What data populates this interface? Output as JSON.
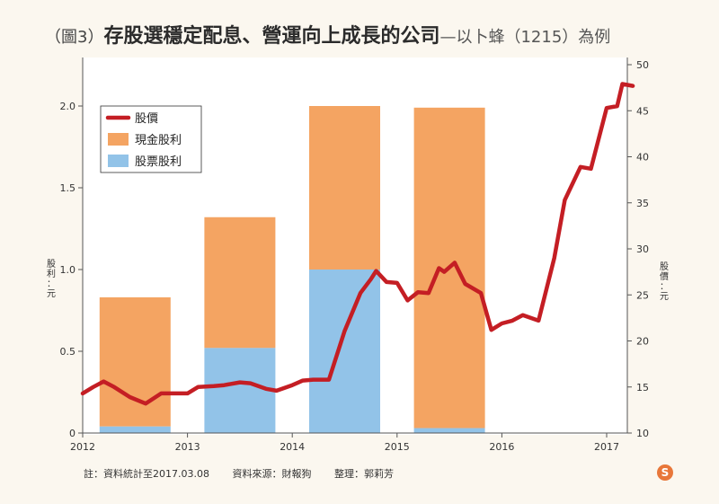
{
  "header": {
    "figure_label": "（圖3）",
    "title": "存股選穩定配息、營運向上成長的公司",
    "subtitle": "—以卜蜂（1215）為例"
  },
  "footnotes": {
    "note": "註：資料統計至2017.03.08",
    "source": "資料來源：財報狗",
    "editor": "整理：郭莉芳"
  },
  "logo_text": "S",
  "chart_data": {
    "type": "bar+line",
    "x_ticks": [
      "2012",
      "2013",
      "2014",
      "2015",
      "2016",
      "2017"
    ],
    "y_left": {
      "label": "股利：元",
      "ticks": [
        "0",
        "0.5",
        "1.0",
        "1.5",
        "2.0"
      ],
      "range": [
        0,
        2.2
      ]
    },
    "y_right": {
      "label": "股價：元",
      "ticks": [
        "10",
        "15",
        "20",
        "25",
        "30",
        "35",
        "40",
        "45",
        "50"
      ],
      "range": [
        10,
        50
      ]
    },
    "legend": {
      "placement": "top-left",
      "entries": [
        "股價",
        "現金股利",
        "股票股利"
      ]
    },
    "bars": [
      {
        "year": 2012,
        "cash": 0.79,
        "stock": 0.04
      },
      {
        "year": 2013,
        "cash": 0.8,
        "stock": 0.52
      },
      {
        "year": 2014,
        "cash": 1.0,
        "stock": 1.0
      },
      {
        "year": 2015,
        "cash": 1.96,
        "stock": 0.03
      }
    ],
    "price_series": {
      "name": "股價",
      "x": [
        2012.0,
        2012.1,
        2012.2,
        2012.3,
        2012.45,
        2012.6,
        2012.75,
        2012.85,
        2013.0,
        2013.1,
        2013.25,
        2013.35,
        2013.5,
        2013.6,
        2013.75,
        2013.85,
        2014.0,
        2014.1,
        2014.2,
        2014.35,
        2014.5,
        2014.65,
        2014.75,
        2014.8,
        2014.9,
        2015.0,
        2015.1,
        2015.2,
        2015.3,
        2015.4,
        2015.45,
        2015.55,
        2015.65,
        2015.8,
        2015.9,
        2016.0,
        2016.1,
        2016.2,
        2016.35,
        2016.5,
        2016.6,
        2016.75,
        2016.85,
        2017.0,
        2017.1,
        2017.15,
        2017.25
      ],
      "y": [
        14.3,
        15.0,
        15.6,
        15.0,
        13.9,
        13.2,
        14.3,
        14.3,
        14.3,
        15.0,
        15.1,
        15.2,
        15.5,
        15.4,
        14.8,
        14.6,
        15.2,
        15.7,
        15.8,
        15.8,
        21.1,
        25.2,
        26.7,
        27.6,
        26.4,
        26.3,
        24.4,
        25.3,
        25.2,
        27.9,
        27.5,
        28.5,
        26.2,
        25.2,
        21.2,
        21.9,
        22.2,
        22.8,
        22.2,
        29.0,
        35.3,
        38.9,
        38.7,
        45.3,
        45.5,
        47.9,
        47.7
      ]
    },
    "colors": {
      "price_line": "#c41e24",
      "cash_bar": "#f4a462",
      "stock_bar": "#92c3e8",
      "plot_bg": "#ffffff"
    }
  }
}
